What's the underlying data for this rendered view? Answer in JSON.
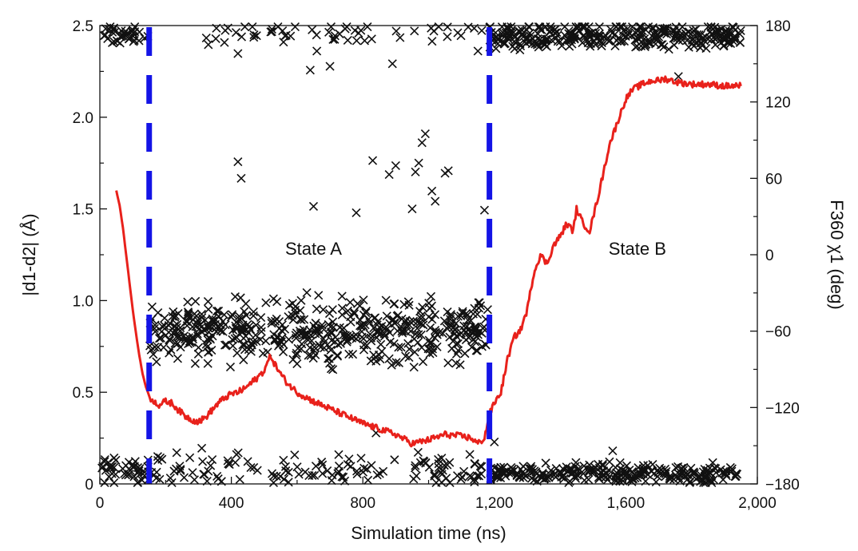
{
  "chart_data": {
    "type": "line+scatter",
    "title": "",
    "xlabel": "Simulation time (ns)",
    "ylabel_left": "|d1-d2| (Å)",
    "ylabel_right": "F360 χ1 (deg)",
    "xlim": [
      0,
      2000
    ],
    "ylim_left": [
      0,
      2.5
    ],
    "ylim_right": [
      -180,
      180
    ],
    "x_ticks": [
      0,
      400,
      800,
      1200,
      1600,
      2000
    ],
    "x_tick_labels": [
      "0",
      "400",
      "800",
      "1,200",
      "1,600",
      "2,000"
    ],
    "y_left_ticks": [
      0,
      0.5,
      1.0,
      1.5,
      2.0,
      2.5
    ],
    "y_left_tick_labels": [
      "0",
      "0.5",
      "1.0",
      "1.5",
      "2.0",
      "2.5"
    ],
    "y_right_ticks": [
      180,
      120,
      60,
      0,
      -60,
      -120,
      -180
    ],
    "y_right_tick_labels": [
      "180",
      "120",
      "60",
      "0",
      "−120",
      "−180"
    ],
    "y_right_tick_labels_full": [
      "180",
      "120",
      "60",
      "0",
      "−60",
      "−120",
      "−180"
    ],
    "state_boundaries_ns": [
      150,
      1185
    ],
    "annotations": [
      {
        "text": "State A",
        "x": 650,
        "y_left": 1.25
      },
      {
        "text": "State B",
        "x": 1635,
        "y_left": 1.25
      }
    ],
    "colors": {
      "distance_line": "#e8211b",
      "dihedral_markers": "#111111",
      "boundary_lines": "#1414e6",
      "left_axis_label": "#e8211b"
    },
    "distance_series": {
      "name": "|d1-d2|",
      "axis": "left",
      "x": [
        50,
        60,
        70,
        80,
        90,
        100,
        110,
        120,
        130,
        140,
        150,
        155,
        160,
        180,
        200,
        220,
        240,
        260,
        280,
        300,
        320,
        340,
        360,
        380,
        400,
        420,
        440,
        460,
        480,
        500,
        510,
        520,
        530,
        550,
        570,
        600,
        650,
        700,
        750,
        800,
        850,
        900,
        950,
        1000,
        1050,
        1100,
        1130,
        1150,
        1170,
        1185,
        1200,
        1210,
        1220,
        1240,
        1260,
        1280,
        1300,
        1320,
        1340,
        1360,
        1380,
        1400,
        1420,
        1440,
        1450,
        1470,
        1490,
        1500,
        1520,
        1550,
        1580,
        1600,
        1620,
        1650,
        1680,
        1700,
        1720,
        1760,
        1800,
        1850,
        1900,
        1950
      ],
      "values": [
        1.6,
        1.52,
        1.4,
        1.25,
        1.1,
        0.95,
        0.82,
        0.7,
        0.6,
        0.53,
        0.48,
        0.45,
        0.46,
        0.43,
        0.45,
        0.44,
        0.4,
        0.37,
        0.35,
        0.34,
        0.36,
        0.4,
        0.44,
        0.47,
        0.49,
        0.5,
        0.52,
        0.55,
        0.58,
        0.62,
        0.66,
        0.7,
        0.66,
        0.6,
        0.55,
        0.5,
        0.45,
        0.41,
        0.37,
        0.33,
        0.3,
        0.27,
        0.22,
        0.24,
        0.27,
        0.26,
        0.25,
        0.22,
        0.25,
        0.38,
        0.44,
        0.47,
        0.5,
        0.68,
        0.8,
        0.84,
        0.95,
        1.15,
        1.25,
        1.2,
        1.3,
        1.35,
        1.42,
        1.38,
        1.5,
        1.42,
        1.38,
        1.45,
        1.6,
        1.85,
        2.0,
        2.1,
        2.15,
        2.18,
        2.2,
        2.2,
        2.21,
        2.19,
        2.18,
        2.18,
        2.17,
        2.17
      ]
    },
    "dihedral_series": {
      "name": "F360 χ1",
      "axis": "right",
      "marker": "x",
      "bands": [
        {
          "x_range": [
            0,
            150
          ],
          "center_deg": 172,
          "spread_deg": 6,
          "count": 40
        },
        {
          "x_range": [
            0,
            150
          ],
          "center_deg": -170,
          "spread_deg": 8,
          "count": 45
        },
        {
          "x_range": [
            150,
            1185
          ],
          "center_deg": -60,
          "spread_deg": 18,
          "count": 520
        },
        {
          "x_range": [
            150,
            1185
          ],
          "center_deg": -170,
          "spread_deg": 10,
          "count": 130
        },
        {
          "x_range": [
            300,
            1185
          ],
          "center_deg": 174,
          "spread_deg": 6,
          "count": 55
        },
        {
          "x_range": [
            1185,
            1950
          ],
          "center_deg": 172,
          "spread_deg": 8,
          "count": 330
        },
        {
          "x_range": [
            1185,
            1950
          ],
          "center_deg": -172,
          "spread_deg": 6,
          "count": 260
        }
      ],
      "outlier_points": [
        [
          420,
          73
        ],
        [
          430,
          60
        ],
        [
          650,
          38
        ],
        [
          780,
          33
        ],
        [
          830,
          74
        ],
        [
          880,
          63
        ],
        [
          900,
          70
        ],
        [
          950,
          36
        ],
        [
          960,
          65
        ],
        [
          970,
          72
        ],
        [
          980,
          88
        ],
        [
          990,
          95
        ],
        [
          1010,
          50
        ],
        [
          1020,
          42
        ],
        [
          1050,
          64
        ],
        [
          1060,
          66
        ],
        [
          1170,
          35
        ],
        [
          890,
          150
        ],
        [
          640,
          145
        ],
        [
          660,
          160
        ],
        [
          700,
          148
        ],
        [
          420,
          158
        ],
        [
          330,
          165
        ],
        [
          1150,
          160
        ],
        [
          1200,
          -147
        ],
        [
          1560,
          -154
        ],
        [
          1760,
          140
        ],
        [
          310,
          -152
        ],
        [
          330,
          -170
        ],
        [
          360,
          -176
        ],
        [
          840,
          -140
        ]
      ]
    }
  }
}
